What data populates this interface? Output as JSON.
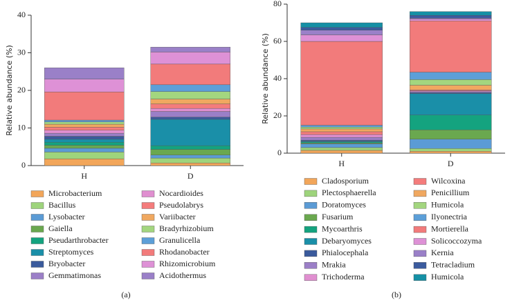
{
  "chart_data": [
    {
      "type": "stacked_bar",
      "caption": "(a)",
      "y_label": "Relative abundance (%)",
      "categories": [
        "H",
        "D"
      ],
      "ylim": [
        0,
        40
      ],
      "yticks": [
        0,
        10,
        20,
        30,
        40
      ],
      "series": [
        {
          "name": "Microbacterium",
          "color": "#f2a65a",
          "values": [
            1.8,
            0.7
          ]
        },
        {
          "name": "Bacillus",
          "color": "#9ed47c",
          "values": [
            1.8,
            1.3
          ]
        },
        {
          "name": "Lysobacter",
          "color": "#5b9bd5",
          "values": [
            1.0,
            0.8
          ]
        },
        {
          "name": "Gaiella",
          "color": "#6aa84f",
          "values": [
            0.8,
            1.5
          ]
        },
        {
          "name": "Pseudarthrobacter",
          "color": "#14a37f",
          "values": [
            0.8,
            1.0
          ]
        },
        {
          "name": "Streptomyces",
          "color": "#1a8fa8",
          "values": [
            0.8,
            7.0
          ]
        },
        {
          "name": "Bryobacter",
          "color": "#3a5a9c",
          "values": [
            0.8,
            0.6
          ]
        },
        {
          "name": "Gemmatimonas",
          "color": "#9b7fc7",
          "values": [
            0.8,
            1.5
          ]
        },
        {
          "name": "Nocardioides",
          "color": "#e08fd0",
          "values": [
            0.8,
            0.8
          ]
        },
        {
          "name": "Pseudolabrys",
          "color": "#f47c7c",
          "values": [
            0.8,
            1.2
          ]
        },
        {
          "name": "Variibacter",
          "color": "#f0a860",
          "values": [
            0.8,
            1.3
          ]
        },
        {
          "name": "Bradyrhizobium",
          "color": "#a3d67f",
          "values": [
            0.6,
            2.0
          ]
        },
        {
          "name": "Granulicella",
          "color": "#5c9fd8",
          "values": [
            0.5,
            1.8
          ]
        },
        {
          "name": "Rhodanobacter",
          "color": "#f27b7b",
          "values": [
            7.5,
            5.5
          ]
        },
        {
          "name": "Rhizomicrobium",
          "color": "#de91d6",
          "values": [
            3.4,
            3.2
          ]
        },
        {
          "name": "Acidothermus",
          "color": "#9a80c8",
          "values": [
            3.0,
            1.3
          ]
        }
      ]
    },
    {
      "type": "stacked_bar",
      "caption": "(b)",
      "y_label": "Relative abundance (%)",
      "categories": [
        "H",
        "D"
      ],
      "ylim": [
        0,
        80
      ],
      "yticks": [
        0,
        20,
        40,
        60,
        80
      ],
      "series": [
        {
          "name": "Cladosporium",
          "color": "#f2a65a",
          "values": [
            1.5,
            1.0
          ]
        },
        {
          "name": "Plectosphaerella",
          "color": "#9ed47c",
          "values": [
            1.5,
            1.5
          ]
        },
        {
          "name": "Doratomyces",
          "color": "#5b9bd5",
          "values": [
            2.0,
            5.0
          ]
        },
        {
          "name": "Fusarium",
          "color": "#6aa84f",
          "values": [
            0.5,
            5.0
          ]
        },
        {
          "name": "Mycoarthris",
          "color": "#14a37f",
          "values": [
            0.5,
            8.0
          ]
        },
        {
          "name": "Debaryomyces",
          "color": "#1a8fa8",
          "values": [
            0.5,
            11.5
          ]
        },
        {
          "name": "Phialocephala",
          "color": "#3a5a9c",
          "values": [
            0.5,
            0.5
          ]
        },
        {
          "name": "Mrakia",
          "color": "#9b7fc7",
          "values": [
            1.5,
            0.5
          ]
        },
        {
          "name": "Trichoderma",
          "color": "#e08fd0",
          "values": [
            1.5,
            0.5
          ]
        },
        {
          "name": "Wilcoxina",
          "color": "#f47c7c",
          "values": [
            1.5,
            0.5
          ]
        },
        {
          "name": "Penicillium",
          "color": "#f0a860",
          "values": [
            1.5,
            2.5
          ]
        },
        {
          "name": "Humicola",
          "color": "#a3d67f",
          "values": [
            1.0,
            3.0
          ]
        },
        {
          "name": "Ilyonectria",
          "color": "#5c9fd8",
          "values": [
            1.0,
            4.0
          ]
        },
        {
          "name": "Mortierella",
          "color": "#f27b7b",
          "values": [
            45,
            27.5
          ]
        },
        {
          "name": "Solicoccozyma",
          "color": "#de91d6",
          "values": [
            3.5,
            1.0
          ]
        },
        {
          "name": "Kernia",
          "color": "#9a80c8",
          "values": [
            2.5,
            0.5
          ]
        },
        {
          "name": "Tetracladium",
          "color": "#3b5b9e",
          "values": [
            1.5,
            1.5
          ]
        },
        {
          "name": "Humicola",
          "color": "#1590a5",
          "values": [
            2.5,
            2.0
          ]
        }
      ]
    }
  ]
}
